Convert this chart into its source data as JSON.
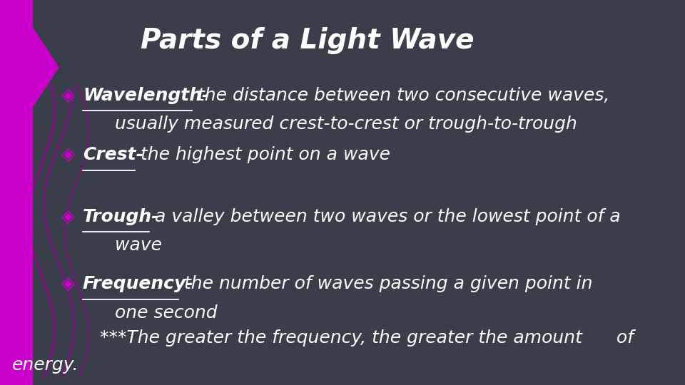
{
  "title": "Parts of a Light Wave",
  "title_fontsize": 28,
  "title_color": "#ffffff",
  "title_fontweight": "bold",
  "background_color": "#3a3d4a",
  "bullet_color": "#ffffff",
  "accent_color": "#cc00cc",
  "bullet_symbol": "◈",
  "bullet_fontsize": 18,
  "text_fontsize": 18,
  "bullet_items": [
    {
      "term": "Wavelength-",
      "rest": " the distance between two consecutive waves,",
      "rest2": "   usually measured crest-to-crest or trough-to-trough",
      "underline": true
    },
    {
      "term": "Crest-",
      "rest": " the highest point on a wave",
      "rest2": "",
      "underline": true
    },
    {
      "term": "Trough-",
      "rest": " a valley between two waves or the lowest point of a",
      "rest2": "   wave",
      "underline": true
    },
    {
      "term": "Frequency-",
      "rest": " the number of waves passing a given point in",
      "rest2": "   one second",
      "underline": true
    }
  ],
  "note_line1": "   ***The greater the frequency, the greater the amount      of",
  "note_line2": "energy.",
  "left_bar_color": "#cc00cc",
  "wave_color": "#9b009b"
}
